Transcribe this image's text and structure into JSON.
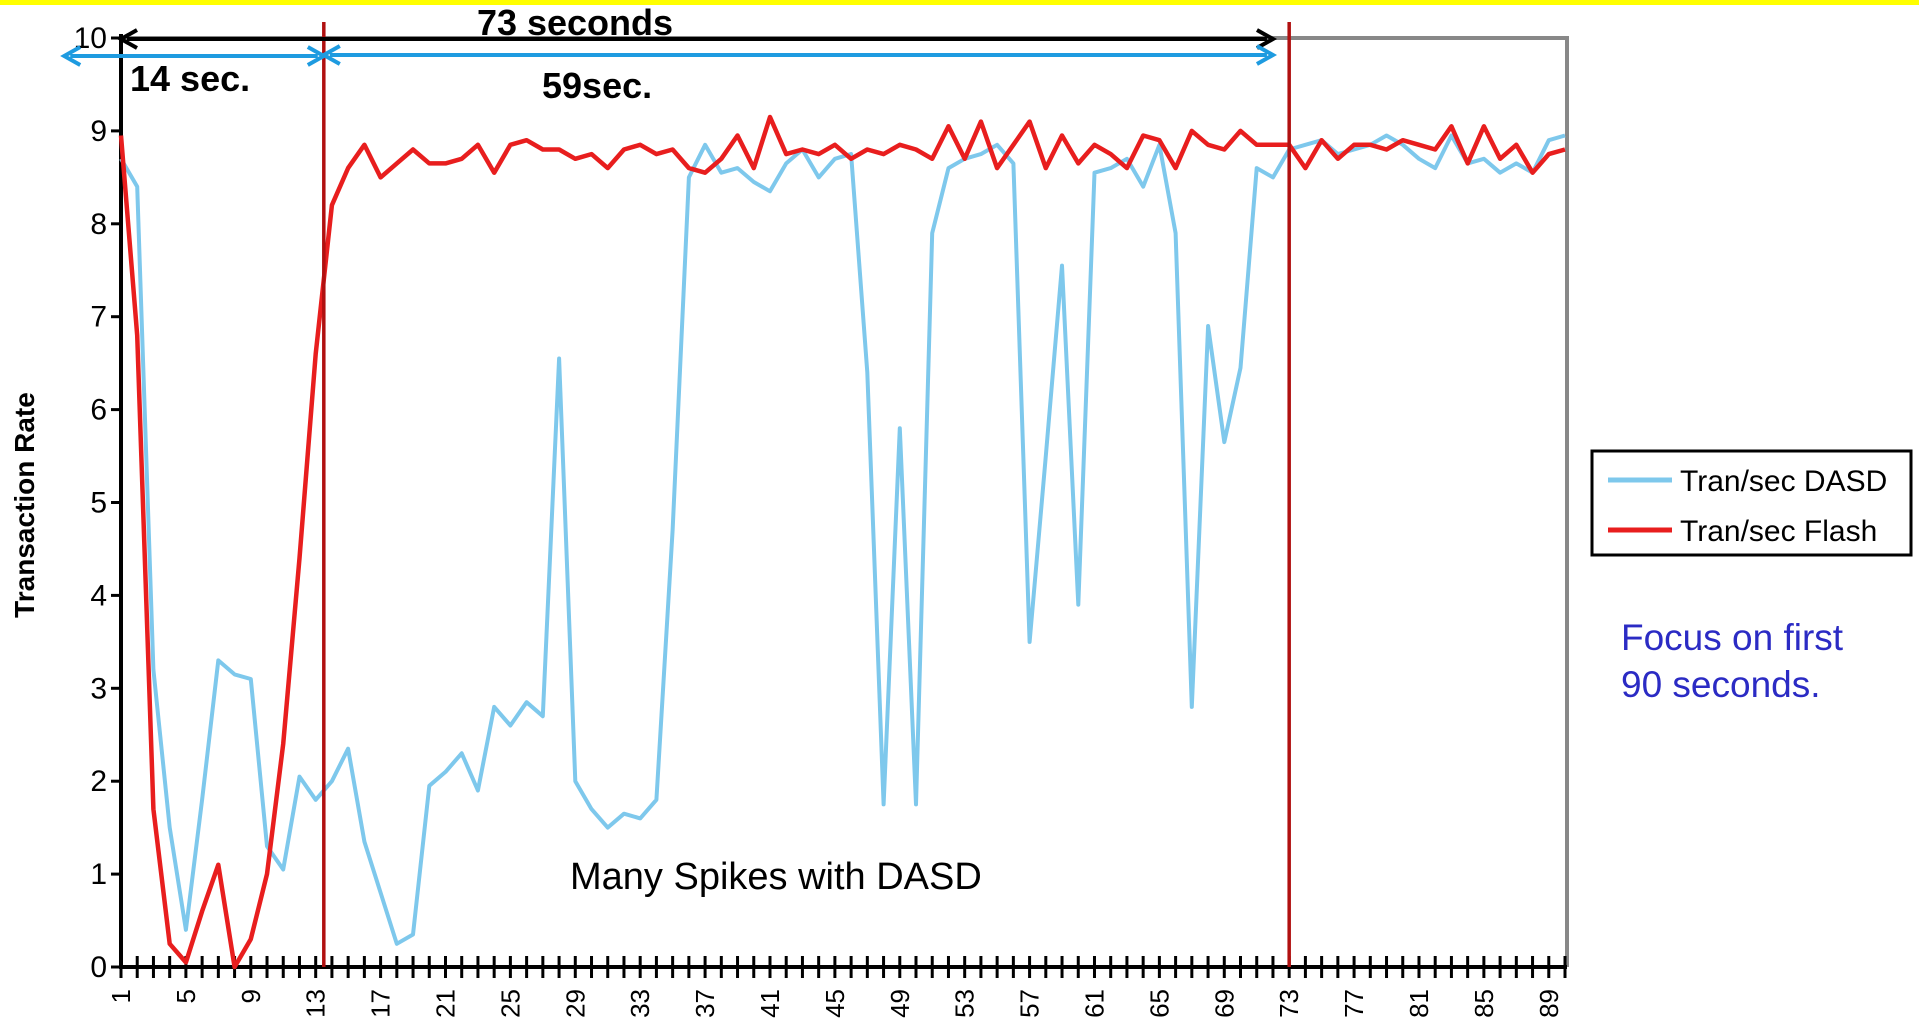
{
  "chart_data": {
    "type": "line",
    "ylabel": "Transaction Rate",
    "xlabel": "",
    "title": "",
    "ylim": [
      0,
      10
    ],
    "xlim": [
      1,
      90
    ],
    "y_ticks": [
      "0",
      "1",
      "2",
      "3",
      "4",
      "5",
      "6",
      "7",
      "8",
      "9",
      "10"
    ],
    "x_tick_labels": [
      "1",
      "5",
      "9",
      "13",
      "17",
      "21",
      "25",
      "29",
      "33",
      "37",
      "41",
      "45",
      "49",
      "53",
      "57",
      "61",
      "65",
      "69",
      "73",
      "77",
      "81",
      "85",
      "89"
    ],
    "grid": false,
    "legend_position": "right",
    "series": [
      {
        "name": "Tran/sec DASD",
        "color": "#7ec8ec",
        "values": [
          8.7,
          8.4,
          3.2,
          1.5,
          0.4,
          1.8,
          3.3,
          3.15,
          3.1,
          1.3,
          1.05,
          2.05,
          1.8,
          2.0,
          2.35,
          1.35,
          0.8,
          0.25,
          0.35,
          1.95,
          2.1,
          2.3,
          1.9,
          2.8,
          2.6,
          2.85,
          2.7,
          6.55,
          2.0,
          1.7,
          1.5,
          1.65,
          1.6,
          1.8,
          4.7,
          8.5,
          8.85,
          8.55,
          8.6,
          8.45,
          8.35,
          8.65,
          8.8,
          8.5,
          8.7,
          8.75,
          6.4,
          1.75,
          5.8,
          1.75,
          7.9,
          8.6,
          8.7,
          8.75,
          8.85,
          8.65,
          3.5,
          5.5,
          7.55,
          3.9,
          8.55,
          8.6,
          8.7,
          8.4,
          8.85,
          7.9,
          2.8,
          6.9,
          5.65,
          6.45,
          8.6,
          8.5,
          8.8,
          8.85,
          8.9,
          8.75,
          8.8,
          8.85,
          8.95,
          8.85,
          8.7,
          8.6,
          8.95,
          8.65,
          8.7,
          8.55,
          8.65,
          8.55,
          8.9,
          8.95
        ]
      },
      {
        "name": "Tran/sec Flash",
        "color": "#e81e1e",
        "values": [
          8.95,
          6.8,
          1.7,
          0.25,
          0.05,
          0.6,
          1.1,
          0.0,
          0.3,
          1.0,
          2.4,
          4.4,
          6.6,
          8.2,
          8.6,
          8.85,
          8.5,
          8.65,
          8.8,
          8.65,
          8.65,
          8.7,
          8.85,
          8.55,
          8.85,
          8.9,
          8.8,
          8.8,
          8.7,
          8.75,
          8.6,
          8.8,
          8.85,
          8.75,
          8.8,
          8.6,
          8.55,
          8.7,
          8.95,
          8.6,
          9.15,
          8.75,
          8.8,
          8.75,
          8.85,
          8.7,
          8.8,
          8.75,
          8.85,
          8.8,
          8.7,
          9.05,
          8.7,
          9.1,
          8.6,
          8.85,
          9.1,
          8.6,
          8.95,
          8.65,
          8.85,
          8.75,
          8.6,
          8.95,
          8.9,
          8.6,
          9.0,
          8.85,
          8.8,
          9.0,
          8.85,
          8.85,
          8.85,
          8.6,
          8.9,
          8.7,
          8.85,
          8.85,
          8.8,
          8.9,
          8.85,
          8.8,
          9.05,
          8.65,
          9.05,
          8.7,
          8.85,
          8.55,
          8.75,
          8.8
        ]
      }
    ],
    "markers": {
      "color": "#b01010",
      "x": [
        13.5,
        73
      ]
    },
    "annotations": {
      "total_label": "73 seconds",
      "phase1_label": "14 sec.",
      "phase2_label": "59sec.",
      "spikes_label": "Many Spikes with DASD",
      "black_arrow_x": [
        1,
        72
      ],
      "blue_arrow1_x": [
        -2.5,
        13.5
      ],
      "blue_arrow2_x": [
        13.5,
        72
      ],
      "arrow_black_color": "#000000",
      "arrow_blue_color": "#1e9be0"
    }
  },
  "side_note": {
    "line1": "Focus on first",
    "line2": "90 seconds.",
    "color": "#2b2bc4"
  },
  "colors": {
    "top_band": "#ffff00",
    "frame": "#888888"
  }
}
